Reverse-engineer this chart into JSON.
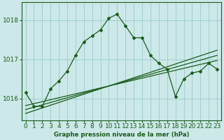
{
  "title": "Graphe pression niveau de la mer (hPa)",
  "bg_color": "#cce8e8",
  "grid_color": "#99cccc",
  "line_color": "#1a5c1a",
  "x_labels": [
    "0",
    "1",
    "2",
    "3",
    "4",
    "5",
    "6",
    "7",
    "8",
    "9",
    "10",
    "11",
    "12",
    "13",
    "14",
    "15",
    "16",
    "17",
    "18",
    "19",
    "20",
    "21",
    "22",
    "23"
  ],
  "main_data": [
    1016.15,
    1015.8,
    1015.8,
    1016.25,
    1016.45,
    1016.7,
    1017.1,
    1017.45,
    1017.6,
    1017.75,
    1018.05,
    1018.15,
    1017.85,
    1017.55,
    1017.55,
    1017.1,
    1016.9,
    1016.75,
    1016.05,
    1016.5,
    1016.65,
    1016.7,
    1016.9,
    1016.75
  ],
  "trend1": [
    1015.82,
    1015.87,
    1015.92,
    1015.97,
    1016.02,
    1016.07,
    1016.12,
    1016.17,
    1016.22,
    1016.27,
    1016.32,
    1016.37,
    1016.42,
    1016.47,
    1016.52,
    1016.57,
    1016.62,
    1016.67,
    1016.72,
    1016.77,
    1016.82,
    1016.87,
    1016.92,
    1016.97
  ],
  "trend2": [
    1015.72,
    1015.78,
    1015.84,
    1015.9,
    1015.96,
    1016.02,
    1016.08,
    1016.14,
    1016.2,
    1016.26,
    1016.32,
    1016.38,
    1016.44,
    1016.5,
    1016.56,
    1016.62,
    1016.68,
    1016.74,
    1016.8,
    1016.86,
    1016.92,
    1016.98,
    1017.04,
    1017.1
  ],
  "trend3": [
    1015.62,
    1015.69,
    1015.76,
    1015.83,
    1015.9,
    1015.97,
    1016.04,
    1016.11,
    1016.18,
    1016.25,
    1016.32,
    1016.39,
    1016.46,
    1016.53,
    1016.6,
    1016.67,
    1016.74,
    1016.81,
    1016.88,
    1016.95,
    1017.02,
    1017.09,
    1017.16,
    1017.23
  ],
  "ylim_min": 1015.45,
  "ylim_max": 1018.45,
  "yticks": [
    1016,
    1017,
    1018
  ]
}
